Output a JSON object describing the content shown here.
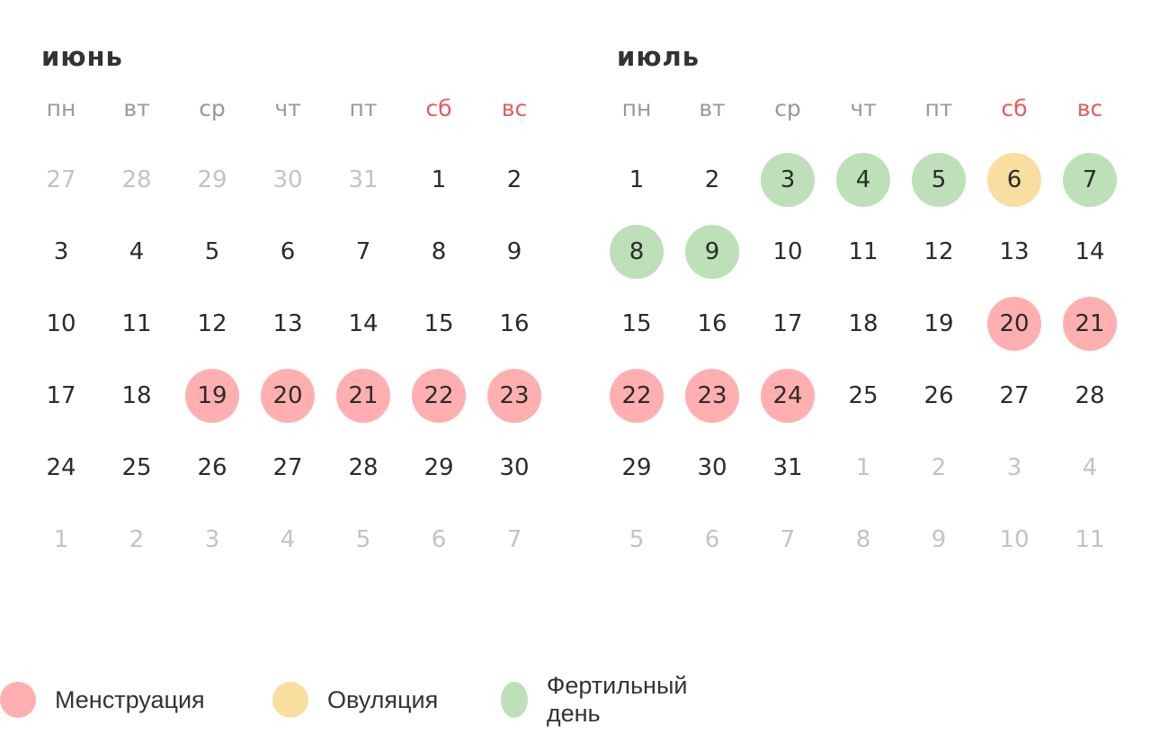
{
  "colors": {
    "menstruation": "#ffafaf",
    "ovulation": "#f8dfa0",
    "fertile": "#bde0b8",
    "weekend": "#e85a5a"
  },
  "weekdays": [
    {
      "label": "пн",
      "weekend": false
    },
    {
      "label": "вт",
      "weekend": false
    },
    {
      "label": "ср",
      "weekend": false
    },
    {
      "label": "чт",
      "weekend": false
    },
    {
      "label": "пт",
      "weekend": false
    },
    {
      "label": "сб",
      "weekend": true
    },
    {
      "label": "вс",
      "weekend": true
    }
  ],
  "months": [
    {
      "title": "июнь",
      "weeks": [
        [
          {
            "d": "27",
            "o": 1
          },
          {
            "d": "28",
            "o": 1
          },
          {
            "d": "29",
            "o": 1
          },
          {
            "d": "30",
            "o": 1
          },
          {
            "d": "31",
            "o": 1
          },
          {
            "d": "1"
          },
          {
            "d": "2"
          }
        ],
        [
          {
            "d": "3"
          },
          {
            "d": "4"
          },
          {
            "d": "5"
          },
          {
            "d": "6"
          },
          {
            "d": "7"
          },
          {
            "d": "8"
          },
          {
            "d": "9"
          }
        ],
        [
          {
            "d": "10"
          },
          {
            "d": "11"
          },
          {
            "d": "12"
          },
          {
            "d": "13"
          },
          {
            "d": "14"
          },
          {
            "d": "15"
          },
          {
            "d": "16"
          }
        ],
        [
          {
            "d": "17"
          },
          {
            "d": "18"
          },
          {
            "d": "19",
            "m": "menstruation"
          },
          {
            "d": "20",
            "m": "menstruation"
          },
          {
            "d": "21",
            "m": "menstruation"
          },
          {
            "d": "22",
            "m": "menstruation"
          },
          {
            "d": "23",
            "m": "menstruation"
          }
        ],
        [
          {
            "d": "24"
          },
          {
            "d": "25"
          },
          {
            "d": "26"
          },
          {
            "d": "27"
          },
          {
            "d": "28"
          },
          {
            "d": "29"
          },
          {
            "d": "30"
          }
        ],
        [
          {
            "d": "1",
            "o": 1
          },
          {
            "d": "2",
            "o": 1
          },
          {
            "d": "3",
            "o": 1
          },
          {
            "d": "4",
            "o": 1
          },
          {
            "d": "5",
            "o": 1
          },
          {
            "d": "6",
            "o": 1
          },
          {
            "d": "7",
            "o": 1
          }
        ]
      ]
    },
    {
      "title": "июль",
      "weeks": [
        [
          {
            "d": "1"
          },
          {
            "d": "2"
          },
          {
            "d": "3",
            "m": "fertile"
          },
          {
            "d": "4",
            "m": "fertile"
          },
          {
            "d": "5",
            "m": "fertile"
          },
          {
            "d": "6",
            "m": "ovulation"
          },
          {
            "d": "7",
            "m": "fertile"
          }
        ],
        [
          {
            "d": "8",
            "m": "fertile"
          },
          {
            "d": "9",
            "m": "fertile"
          },
          {
            "d": "10"
          },
          {
            "d": "11"
          },
          {
            "d": "12"
          },
          {
            "d": "13"
          },
          {
            "d": "14"
          }
        ],
        [
          {
            "d": "15"
          },
          {
            "d": "16"
          },
          {
            "d": "17"
          },
          {
            "d": "18"
          },
          {
            "d": "19"
          },
          {
            "d": "20",
            "m": "menstruation"
          },
          {
            "d": "21",
            "m": "menstruation"
          }
        ],
        [
          {
            "d": "22",
            "m": "menstruation"
          },
          {
            "d": "23",
            "m": "menstruation"
          },
          {
            "d": "24",
            "m": "menstruation"
          },
          {
            "d": "25"
          },
          {
            "d": "26"
          },
          {
            "d": "27"
          },
          {
            "d": "28"
          }
        ],
        [
          {
            "d": "29"
          },
          {
            "d": "30"
          },
          {
            "d": "31"
          },
          {
            "d": "1",
            "o": 1
          },
          {
            "d": "2",
            "o": 1
          },
          {
            "d": "3",
            "o": 1
          },
          {
            "d": "4",
            "o": 1
          }
        ],
        [
          {
            "d": "5",
            "o": 1
          },
          {
            "d": "6",
            "o": 1
          },
          {
            "d": "7",
            "o": 1
          },
          {
            "d": "8",
            "o": 1
          },
          {
            "d": "9",
            "o": 1
          },
          {
            "d": "10",
            "o": 1
          },
          {
            "d": "11",
            "o": 1
          }
        ]
      ]
    }
  ],
  "legend": [
    {
      "key": "menstruation",
      "label": "Менструация"
    },
    {
      "key": "ovulation",
      "label": "Овуляция"
    },
    {
      "key": "fertile",
      "label": "Фертильный день"
    }
  ]
}
